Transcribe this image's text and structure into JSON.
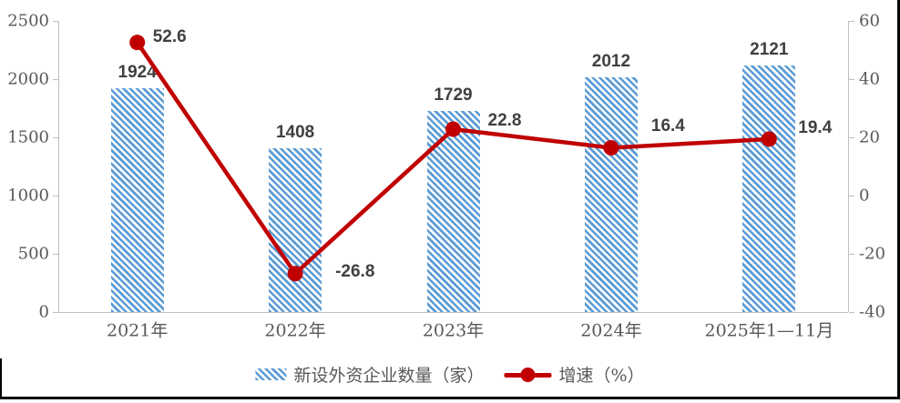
{
  "chart_data": {
    "type": "combo",
    "categories": [
      "2021年",
      "2022年",
      "2023年",
      "2024年",
      "2025年1—11月"
    ],
    "series": [
      {
        "name": "新设外资企业数量（家）",
        "type": "bar",
        "axis": "left",
        "values": [
          1924,
          1408,
          1729,
          2012,
          2121
        ]
      },
      {
        "name": "增速（%）",
        "type": "line",
        "axis": "right",
        "values": [
          52.6,
          -26.8,
          22.8,
          16.4,
          19.4
        ]
      }
    ],
    "bar_labels": [
      "1924",
      "1408",
      "1729",
      "2012",
      "2121"
    ],
    "line_labels": [
      "52.6",
      "-26.8",
      "22.8",
      "16.4",
      "19.4"
    ],
    "left_axis": {
      "min": 0,
      "max": 2500,
      "step": 500,
      "ticks": [
        "0",
        "500",
        "1000",
        "1500",
        "2000",
        "2500"
      ]
    },
    "right_axis": {
      "min": -40,
      "max": 60,
      "step": 20,
      "ticks": [
        "-40",
        "-20",
        "0",
        "20",
        "40",
        "60"
      ]
    },
    "grid": false,
    "legend_position": "bottom",
    "legend": {
      "bar_label": "新设外资企业数量（家）",
      "line_label": "增速（%）"
    }
  },
  "colors": {
    "bar": "#5B9BD5",
    "line": "#C00000",
    "axis_line": "#BFBFBF",
    "axis_text": "#595959",
    "data_label_text": "#404040",
    "frame_border": "#000000",
    "background": "#FFFFFF"
  }
}
